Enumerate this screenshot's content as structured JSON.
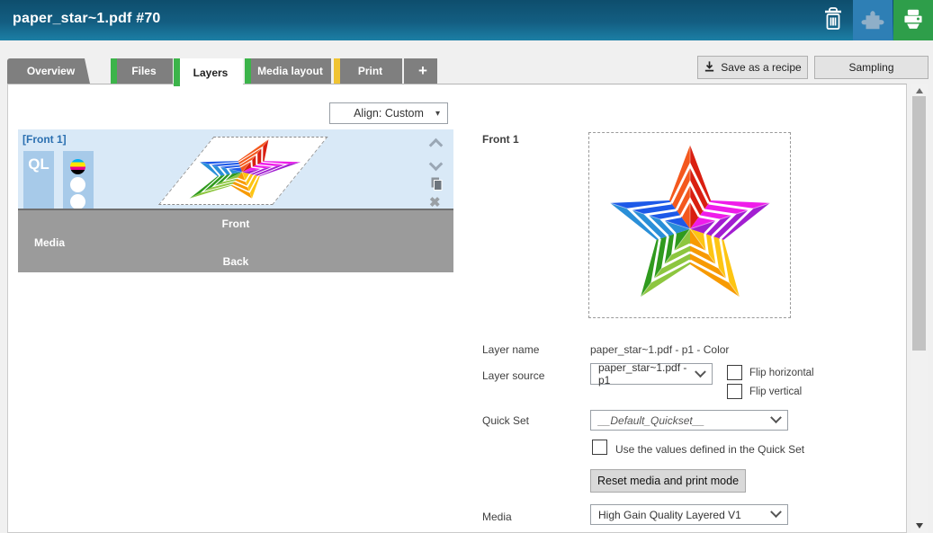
{
  "title_bar": {
    "title": "paper_star~1.pdf #70"
  },
  "header_icons": {
    "delete": "trash-icon",
    "accessories": "puzzle-icon",
    "print": "printer-icon"
  },
  "tabs": [
    {
      "label": "Overview",
      "stripe": "none",
      "active": false
    },
    {
      "label": "Files",
      "stripe": "#3cb44a",
      "active": false
    },
    {
      "label": "Layers",
      "stripe": "#3cb44a",
      "active": true
    },
    {
      "label": "Media layout",
      "stripe": "#3cb44a",
      "active": false
    },
    {
      "label": "Print",
      "stripe": "#f0c332",
      "active": false
    },
    {
      "label": "+",
      "stripe": "none",
      "active": false
    }
  ],
  "header_buttons": {
    "save_recipe": "Save as a recipe",
    "sampling": "Sampling"
  },
  "layers_panel": {
    "align_dropdown_value": "Align: Custom",
    "layer_label": "[Front 1]",
    "quality_badge": "QL",
    "band": {
      "front": "Front",
      "media": "Media",
      "back": "Back"
    }
  },
  "details_panel": {
    "heading": "Front 1",
    "fields": {
      "layer_name_label": "Layer name",
      "layer_name_value": "paper_star~1.pdf - p1 - Color",
      "layer_source_label": "Layer source",
      "layer_source_value": "paper_star~1.pdf - p1",
      "flip_horizontal": "Flip horizontal",
      "flip_vertical": "Flip vertical",
      "quick_set_label": "Quick Set",
      "quick_set_value": "__Default_Quickset__",
      "use_quickset": "Use the values defined in the Quick Set",
      "reset_button": "Reset media and print mode",
      "media_label": "Media",
      "media_value": "High Gain Quality Layered V1"
    }
  },
  "colors": {
    "titlebar_top": "#0e4e6d",
    "titlebar_bottom": "#1c7fa5",
    "tab_gray": "#7f7f7f",
    "tab_stripe_green": "#3cb44a",
    "tab_stripe_yellow": "#f0c332",
    "puzzle_tile": "#2e7fb5",
    "printer_tile": "#2e9e4a",
    "layer_row_bg": "#d9e9f7",
    "layer_bar": "#a7cae9",
    "band_gray": "#9b9b9b",
    "front_label_blue": "#2a6fb0"
  },
  "star": {
    "points": [
      {
        "a": "#f4581d",
        "b": "#d91f11"
      },
      {
        "a": "#ef1cea",
        "b": "#a21ed1"
      },
      {
        "a": "#fdc513",
        "b": "#f79a02"
      },
      {
        "a": "#8dc63f",
        "b": "#2f9a1d"
      },
      {
        "a": "#2a8fd8",
        "b": "#1d59e8"
      }
    ]
  }
}
